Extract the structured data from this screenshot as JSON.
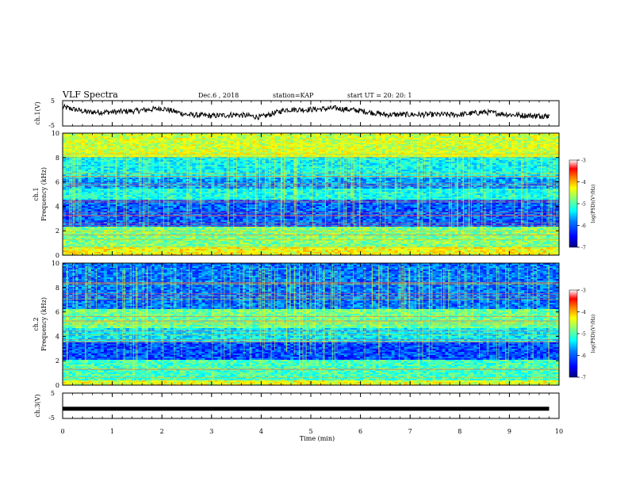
{
  "header": {
    "title": "VLF Spectra",
    "date": "Dec.6 , 2018",
    "station": "station=KAP",
    "start": "start UT = 20: 20: 1"
  },
  "colors": {
    "trace": "#000000",
    "colormap": [
      "#00007f",
      "#0000ff",
      "#0080ff",
      "#00ffff",
      "#80ff80",
      "#ffff00",
      "#ff8000",
      "#ff0000",
      "#ffffff"
    ]
  },
  "chart_data": [
    {
      "type": "line",
      "panel": "ch1-waveform",
      "ylabel": "ch.1(V)",
      "ylim": [
        -5,
        5
      ],
      "yticks": [
        "5",
        "-5"
      ],
      "x": [
        0,
        0.5,
        1,
        1.5,
        2,
        2.5,
        3,
        3.5,
        4,
        4.5,
        5,
        5.5,
        6,
        6.5,
        7,
        7.5,
        8,
        8.5,
        9,
        9.5,
        9.8
      ],
      "y": [
        2.5,
        0.5,
        0.5,
        1.0,
        2.0,
        -0.5,
        -1.0,
        -0.5,
        -1.5,
        1.5,
        1.5,
        2.0,
        1.0,
        -0.5,
        -0.5,
        -0.5,
        -0.5,
        0.5,
        -0.5,
        -1.0,
        -1.0
      ]
    },
    {
      "type": "heatmap",
      "panel": "ch1-spectrogram",
      "ylabel": "ch.1",
      "ylabel2": "Frequency (kHz)",
      "ylim": [
        0,
        10
      ],
      "yticks": [
        "0",
        "2",
        "4",
        "6",
        "8",
        "10"
      ],
      "colorbar": {
        "label": "log(PSD)(V²/Hz)",
        "range": [
          -7,
          -3
        ],
        "ticks": [
          "-3",
          "-4",
          "-5",
          "-6",
          "-7"
        ]
      }
    },
    {
      "type": "heatmap",
      "panel": "ch2-spectrogram",
      "ylabel": "ch.2",
      "ylabel2": "Frequency (kHz)",
      "ylim": [
        0,
        10
      ],
      "yticks": [
        "0",
        "2",
        "4",
        "6",
        "8",
        "10"
      ],
      "colorbar": {
        "label": "log(PSD)(V²/Hz)",
        "range": [
          -7,
          -3
        ],
        "ticks": [
          "-3",
          "-4",
          "-5",
          "-6",
          "-7"
        ]
      }
    },
    {
      "type": "line",
      "panel": "ch3-waveform",
      "ylabel": "ch.3(V)",
      "ylim": [
        -5,
        5
      ],
      "yticks": [
        "5",
        "-5"
      ],
      "x": [
        0,
        9.8
      ],
      "y": [
        -1.2,
        -1.2
      ]
    }
  ],
  "xaxis": {
    "label": "Time (min)",
    "range": [
      0,
      10
    ],
    "ticks": [
      "0",
      "1",
      "2",
      "3",
      "4",
      "5",
      "6",
      "7",
      "8",
      "9",
      "10"
    ]
  }
}
